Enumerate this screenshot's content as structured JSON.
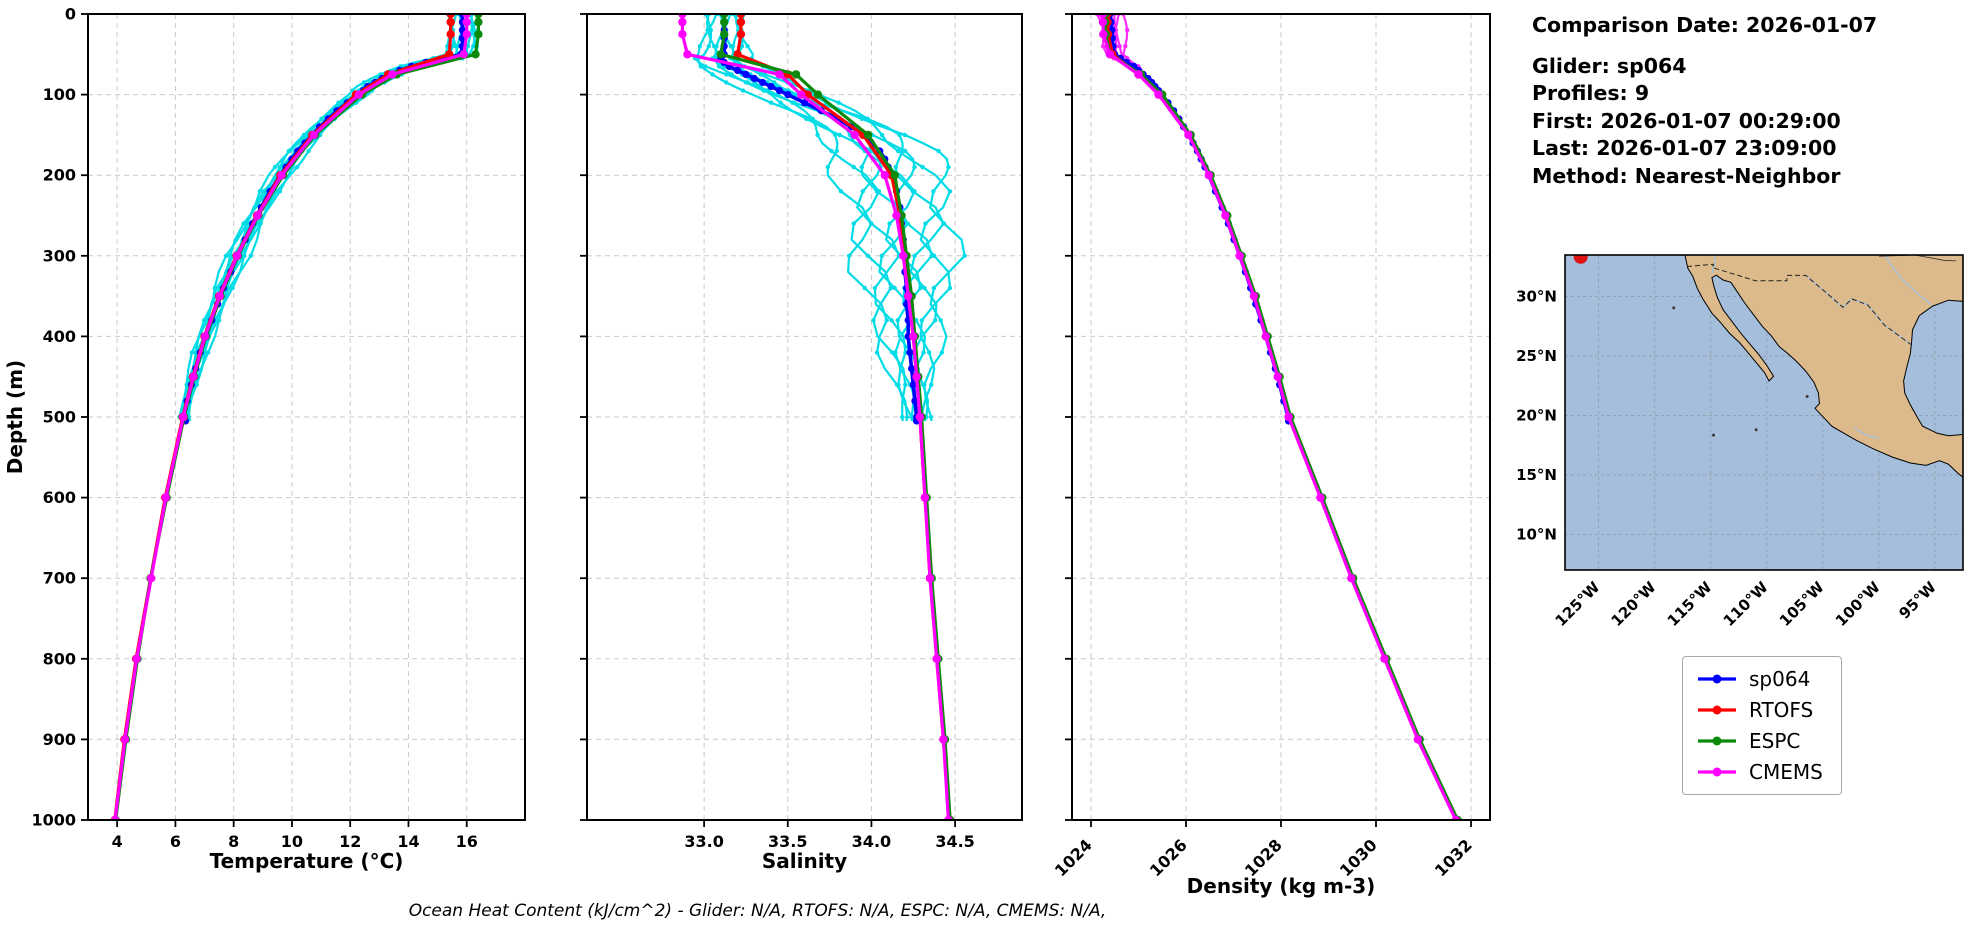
{
  "info_panel": {
    "comparison_date": "Comparison Date: 2026-01-07",
    "lines": [
      "Glider: sp064",
      "Profiles: 9",
      "First: 2026-01-07 00:29:00",
      "Last: 2026-01-07 23:09:00",
      "Method: Nearest-Neighbor"
    ]
  },
  "footer": "Ocean Heat Content (kJ/cm^2) - Glider: N/A,  RTOFS: N/A,  ESPC: N/A,  CMEMS: N/A,",
  "legend": {
    "items": [
      {
        "label": "sp064",
        "color": "#0000ff"
      },
      {
        "label": "RTOFS",
        "color": "#ff0000"
      },
      {
        "label": "ESPC",
        "color": "#0b8a0b"
      },
      {
        "label": "CMEMS",
        "color": "#ff00ff"
      }
    ]
  },
  "series_colors": {
    "sp064": "#0000ff",
    "RTOFS": "#ff0000",
    "ESPC": "#0b8a0b",
    "CMEMS": "#ff00ff"
  },
  "chart_data": {
    "type": "line",
    "depth_axis": {
      "label": "Depth (m)",
      "lim": [
        0,
        1000
      ],
      "ticks": [
        0,
        100,
        200,
        300,
        400,
        500,
        600,
        700,
        800,
        900,
        1000
      ]
    },
    "glider_depths": [
      0,
      10,
      20,
      30,
      40,
      50,
      55,
      60,
      65,
      70,
      75,
      80,
      85,
      90,
      95,
      100,
      110,
      120,
      130,
      140,
      150,
      160,
      170,
      180,
      190,
      200,
      220,
      240,
      260,
      280,
      300,
      320,
      340,
      360,
      380,
      400,
      420,
      440,
      460,
      480,
      500,
      505
    ],
    "model_depths": [
      0,
      10,
      25,
      50,
      75,
      100,
      150,
      200,
      250,
      300,
      350,
      400,
      450,
      500,
      600,
      700,
      800,
      900,
      1000
    ],
    "panels": [
      {
        "xlabel": "Temperature (°C)",
        "xlim": [
          3.0,
          18.0
        ],
        "xticks": [
          4,
          6,
          8,
          10,
          12,
          14,
          16
        ],
        "xtick_labels": [
          "4",
          "6",
          "8",
          "10",
          "12",
          "14",
          "16"
        ],
        "rotate_labels": false,
        "raw_scatter": {
          "color": "#00dce6",
          "profiles": 9,
          "base": "sp064",
          "amplitude": [
            [
              0,
              0.55
            ],
            [
              50,
              0.5
            ],
            [
              70,
              0.3
            ],
            [
              150,
              0.3
            ],
            [
              300,
              0.35
            ],
            [
              450,
              0.2
            ],
            [
              505,
              0.15
            ]
          ]
        },
        "series": {
          "sp064": [
            15.85,
            15.85,
            15.85,
            15.85,
            15.85,
            15.8,
            15.3,
            14.6,
            14.1,
            13.7,
            13.4,
            13.1,
            12.85,
            12.6,
            12.45,
            12.3,
            11.9,
            11.55,
            11.25,
            10.95,
            10.7,
            10.45,
            10.2,
            10.0,
            9.8,
            9.6,
            9.25,
            8.95,
            8.65,
            8.4,
            8.15,
            7.9,
            7.65,
            7.45,
            7.25,
            7.05,
            6.85,
            6.7,
            6.55,
            6.4,
            6.3,
            6.35
          ],
          "RTOFS": [
            15.45,
            15.45,
            15.45,
            15.4,
            13.3,
            12.2,
            10.7,
            9.6,
            8.8,
            8.1,
            7.5,
            7.0,
            6.6,
            6.25,
            5.65,
            5.15,
            4.65,
            4.25,
            3.92
          ],
          "ESPC": [
            16.4,
            16.4,
            16.4,
            16.3,
            13.6,
            12.4,
            10.8,
            9.7,
            8.85,
            8.15,
            7.55,
            7.05,
            6.65,
            6.3,
            5.7,
            5.15,
            4.7,
            4.3,
            3.95
          ],
          "CMEMS": [
            16.0,
            16.0,
            16.0,
            15.9,
            13.45,
            12.3,
            10.75,
            9.65,
            8.82,
            8.12,
            7.52,
            7.02,
            6.62,
            6.27,
            5.67,
            5.17,
            4.67,
            4.27,
            3.93
          ]
        }
      },
      {
        "xlabel": "Salinity",
        "xlim": [
          32.3,
          34.9
        ],
        "xticks": [
          33.0,
          33.5,
          34.0,
          34.5
        ],
        "xtick_labels": [
          "33.0",
          "33.5",
          "34.0",
          "34.5"
        ],
        "rotate_labels": false,
        "raw_scatter": {
          "color": "#00dce6",
          "profiles": 9,
          "base": "sp064",
          "amplitude": [
            [
              0,
              0.12
            ],
            [
              100,
              0.18
            ],
            [
              150,
              0.28
            ],
            [
              250,
              0.32
            ],
            [
              350,
              0.25
            ],
            [
              450,
              0.12
            ],
            [
              505,
              0.08
            ]
          ]
        },
        "series": {
          "sp064": [
            33.12,
            33.12,
            33.12,
            33.12,
            33.12,
            33.12,
            33.1,
            33.12,
            33.15,
            33.2,
            33.25,
            33.3,
            33.35,
            33.4,
            33.45,
            33.5,
            33.6,
            33.7,
            33.8,
            33.88,
            33.95,
            34.0,
            34.05,
            34.08,
            34.1,
            34.12,
            34.15,
            34.17,
            34.18,
            34.19,
            34.2,
            34.2,
            34.21,
            34.21,
            34.22,
            34.22,
            34.23,
            34.24,
            34.25,
            34.26,
            34.27,
            34.27
          ],
          "RTOFS": [
            33.22,
            33.22,
            33.22,
            33.2,
            33.5,
            33.62,
            33.95,
            34.12,
            34.17,
            34.2,
            34.22,
            34.25,
            34.27,
            34.29,
            34.32,
            34.35,
            34.39,
            34.43,
            34.47
          ],
          "ESPC": [
            33.12,
            33.12,
            33.12,
            33.1,
            33.55,
            33.68,
            33.98,
            34.14,
            34.18,
            34.21,
            34.24,
            34.26,
            34.28,
            34.3,
            34.33,
            34.36,
            34.4,
            34.44,
            34.47
          ],
          "CMEMS": [
            32.87,
            32.87,
            32.87,
            32.9,
            33.45,
            33.58,
            33.9,
            34.08,
            34.15,
            34.19,
            34.22,
            34.25,
            34.27,
            34.29,
            34.32,
            34.35,
            34.39,
            34.43,
            34.46
          ]
        }
      },
      {
        "xlabel": "Density (kg m-3)",
        "xlim": [
          1023.6,
          1032.4
        ],
        "xticks": [
          1024,
          1026,
          1028,
          1030,
          1032
        ],
        "xtick_labels": [
          "1024",
          "1026",
          "1028",
          "1030",
          "1032"
        ],
        "rotate_labels": true,
        "raw_scatter": {
          "color": "#ff2bff",
          "profiles": 7,
          "base": "sp064",
          "max_depth": 70,
          "amplitude": [
            [
              0,
              0.3
            ],
            [
              40,
              0.22
            ],
            [
              70,
              0.08
            ]
          ]
        },
        "series": {
          "sp064": [
            1024.4,
            1024.42,
            1024.44,
            1024.45,
            1024.46,
            1024.5,
            1024.62,
            1024.75,
            1024.9,
            1025.0,
            1025.1,
            1025.2,
            1025.28,
            1025.35,
            1025.42,
            1025.5,
            1025.62,
            1025.74,
            1025.85,
            1025.95,
            1026.05,
            1026.15,
            1026.24,
            1026.32,
            1026.4,
            1026.48,
            1026.62,
            1026.76,
            1026.89,
            1027.01,
            1027.13,
            1027.25,
            1027.36,
            1027.47,
            1027.58,
            1027.68,
            1027.78,
            1027.88,
            1027.97,
            1028.06,
            1028.15,
            1028.16
          ],
          "RTOFS": [
            1024.35,
            1024.35,
            1024.36,
            1024.45,
            1025.0,
            1025.45,
            1026.08,
            1026.5,
            1026.85,
            1027.15,
            1027.45,
            1027.7,
            1027.95,
            1028.18,
            1028.85,
            1029.5,
            1030.2,
            1030.9,
            1031.7
          ],
          "ESPC": [
            1024.3,
            1024.3,
            1024.31,
            1024.4,
            1025.05,
            1025.5,
            1026.1,
            1026.52,
            1026.87,
            1027.17,
            1027.47,
            1027.72,
            1027.97,
            1028.2,
            1028.87,
            1029.52,
            1030.22,
            1030.92,
            1031.72
          ],
          "CMEMS": [
            1024.25,
            1024.25,
            1024.26,
            1024.4,
            1025.0,
            1025.42,
            1026.05,
            1026.48,
            1026.83,
            1027.13,
            1027.43,
            1027.68,
            1027.93,
            1028.16,
            1028.83,
            1029.48,
            1030.18,
            1030.88,
            1031.68
          ]
        }
      }
    ]
  },
  "map": {
    "lon_lim": [
      -128,
      -92.5
    ],
    "lat_lim": [
      7,
      33.5
    ],
    "lat_ticks": [
      30,
      25,
      20,
      15,
      10
    ],
    "lat_tick_labels": [
      "30°N",
      "25°N",
      "20°N",
      "15°N",
      "10°N"
    ],
    "lon_ticks": [
      -125,
      -120,
      -115,
      -110,
      -105,
      -100,
      -95
    ],
    "lon_tick_labels": [
      "125°W",
      "120°W",
      "115°W",
      "110°W",
      "105°W",
      "100°W",
      "95°W"
    ],
    "ocean_color": "#a4bedb",
    "land_color": "#dcba8b",
    "coastline": [
      [
        -117.3,
        33.5
      ],
      [
        -117.05,
        32.4
      ],
      [
        -116.6,
        31.7
      ],
      [
        -116.2,
        30.7
      ],
      [
        -115.7,
        29.8
      ],
      [
        -114.9,
        28.6
      ],
      [
        -114.2,
        27.9
      ],
      [
        -113.3,
        26.9
      ],
      [
        -112.4,
        26.1
      ],
      [
        -111.6,
        25.2
      ],
      [
        -110.9,
        24.4
      ],
      [
        -110.2,
        23.6
      ],
      [
        -109.8,
        22.9
      ],
      [
        -109.4,
        23.3
      ],
      [
        -110.0,
        24.2
      ],
      [
        -110.7,
        25.1
      ],
      [
        -111.5,
        26.0
      ],
      [
        -112.3,
        26.9
      ],
      [
        -113.1,
        27.9
      ],
      [
        -113.9,
        28.9
      ],
      [
        -114.4,
        29.9
      ],
      [
        -114.7,
        30.8
      ],
      [
        -114.9,
        31.6
      ],
      [
        -114.5,
        31.8
      ],
      [
        -113.9,
        31.4
      ],
      [
        -113.2,
        31.2
      ],
      [
        -112.7,
        30.5
      ],
      [
        -112.0,
        29.5
      ],
      [
        -111.2,
        28.5
      ],
      [
        -110.4,
        27.5
      ],
      [
        -109.6,
        26.7
      ],
      [
        -108.9,
        25.8
      ],
      [
        -108.1,
        25.2
      ],
      [
        -107.3,
        24.5
      ],
      [
        -106.5,
        23.7
      ],
      [
        -105.8,
        22.8
      ],
      [
        -105.4,
        21.9
      ],
      [
        -105.3,
        21.0
      ],
      [
        -105.7,
        20.6
      ],
      [
        -105.0,
        19.9
      ],
      [
        -104.2,
        19.1
      ],
      [
        -103.3,
        18.6
      ],
      [
        -102.0,
        17.9
      ],
      [
        -100.5,
        17.2
      ],
      [
        -98.8,
        16.5
      ],
      [
        -97.2,
        16.0
      ],
      [
        -95.8,
        15.8
      ],
      [
        -94.6,
        16.2
      ],
      [
        -93.8,
        15.9
      ],
      [
        -92.9,
        15.1
      ],
      [
        -92.5,
        14.8
      ],
      [
        -92.5,
        18.4
      ],
      [
        -93.8,
        18.3
      ],
      [
        -94.8,
        18.5
      ],
      [
        -96.1,
        19.1
      ],
      [
        -96.6,
        19.9
      ],
      [
        -97.2,
        20.9
      ],
      [
        -97.7,
        21.9
      ],
      [
        -97.8,
        22.9
      ],
      [
        -97.5,
        24.1
      ],
      [
        -97.2,
        25.2
      ],
      [
        -97.1,
        26.0
      ],
      [
        -97.0,
        27.2
      ],
      [
        -96.4,
        28.4
      ],
      [
        -95.2,
        29.2
      ],
      [
        -93.8,
        29.7
      ],
      [
        -92.5,
        29.6
      ],
      [
        -92.5,
        33.5
      ]
    ],
    "border": [
      [
        -117.12,
        32.53
      ],
      [
        -114.75,
        32.72
      ],
      [
        -114.85,
        32.45
      ],
      [
        -111.0,
        31.33
      ],
      [
        -108.21,
        31.33
      ],
      [
        -108.21,
        31.78
      ],
      [
        -106.53,
        31.78
      ],
      [
        -104.8,
        30.4
      ],
      [
        -103.2,
        29.1
      ],
      [
        -102.4,
        29.8
      ],
      [
        -101.0,
        29.3
      ],
      [
        -99.5,
        27.6
      ],
      [
        -97.15,
        25.97
      ]
    ],
    "state_line": [
      [
        -100.0,
        33.4
      ],
      [
        -96.8,
        33.5
      ],
      [
        -94.2,
        33.05
      ],
      [
        -93.1,
        33.0
      ]
    ],
    "rivers": [
      [
        [
          -114.6,
          33.5
        ],
        [
          -114.65,
          32.7
        ],
        [
          -114.9,
          31.9
        ]
      ],
      [
        [
          -106.53,
          31.78
        ],
        [
          -104.8,
          30.4
        ],
        [
          -103.2,
          29.1
        ],
        [
          -102.4,
          29.8
        ],
        [
          -101.0,
          29.3
        ],
        [
          -99.5,
          27.6
        ],
        [
          -97.15,
          25.97
        ]
      ],
      [
        [
          -99.5,
          33.5
        ],
        [
          -98.0,
          31.5
        ],
        [
          -96.5,
          30.2
        ],
        [
          -95.3,
          29.3
        ]
      ],
      [
        [
          -102.2,
          18.9
        ],
        [
          -101.0,
          18.3
        ],
        [
          -100.0,
          18.1
        ]
      ]
    ],
    "islands": [
      [
        -118.3,
        29.05
      ],
      [
        -110.95,
        18.8
      ],
      [
        -106.4,
        21.6
      ],
      [
        -114.75,
        18.35
      ]
    ],
    "glider_marker": {
      "lon": -126.6,
      "lat": 33.35,
      "color": "#dd1111"
    }
  }
}
